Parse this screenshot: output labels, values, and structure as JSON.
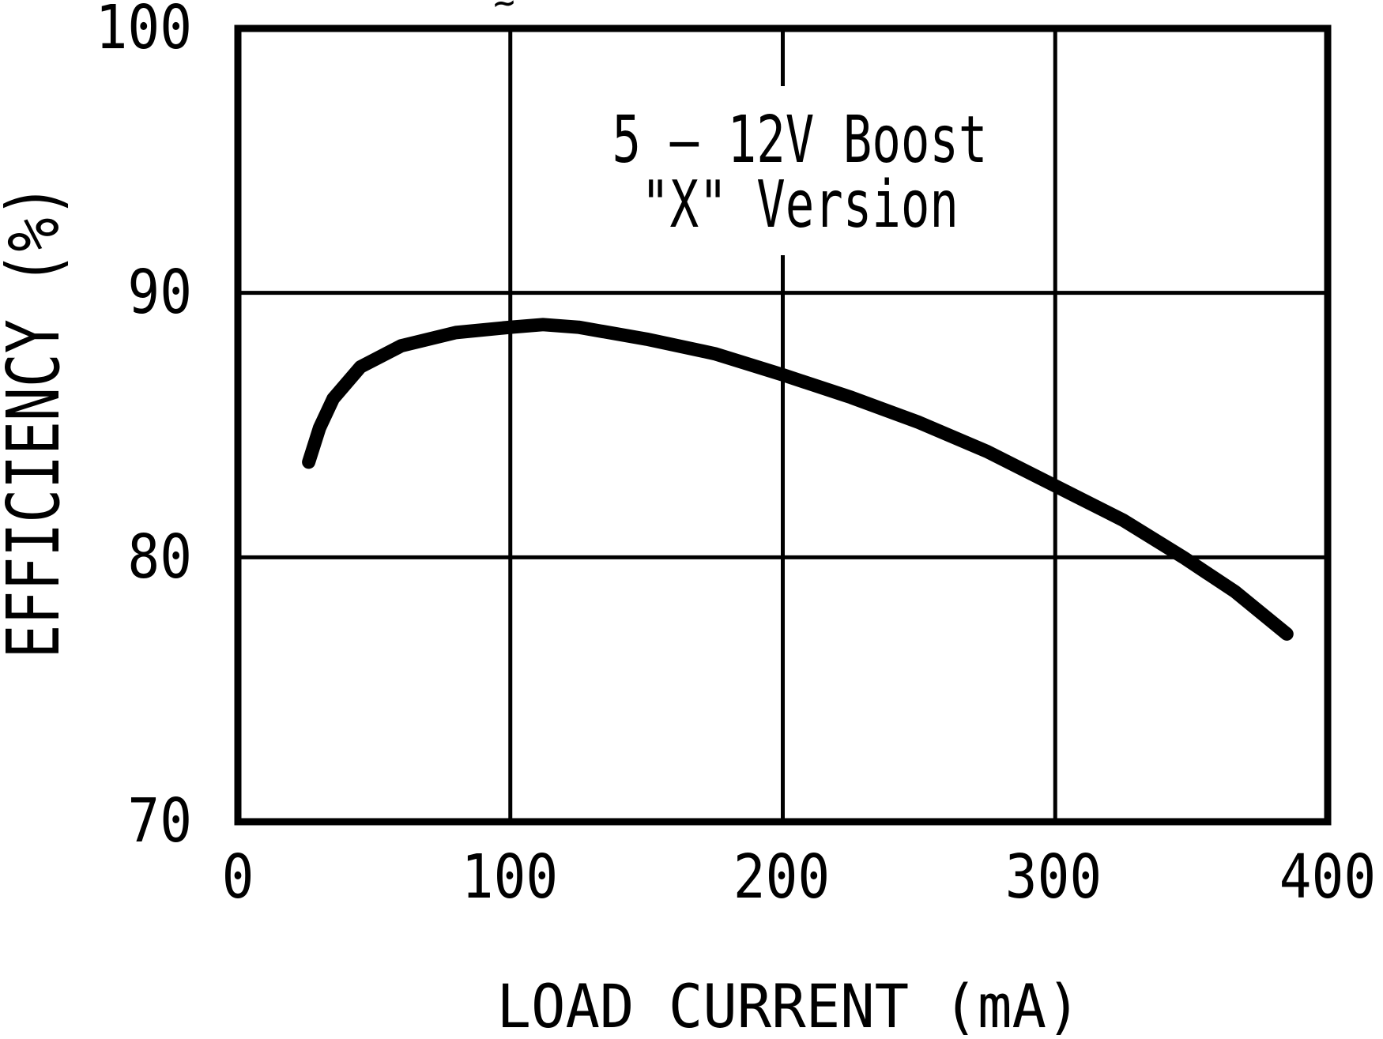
{
  "chart_data": {
    "type": "line",
    "title": "5 – 12V Boost \"X\" Version",
    "annotation_lines": [
      "5 – 12V Boost",
      "\"X\" Version"
    ],
    "xlabel": "LOAD CURRENT (mA)",
    "ylabel": "EFFICIENCY (%)",
    "xlim": [
      0,
      400
    ],
    "ylim": [
      70,
      100
    ],
    "x_ticks": [
      0,
      100,
      200,
      300,
      400
    ],
    "x_tick_labels": [
      "0",
      "100",
      "200",
      "300",
      "400"
    ],
    "y_ticks": [
      70,
      80,
      90,
      100
    ],
    "y_tick_labels": [
      "70",
      "80",
      "90",
      "100"
    ],
    "grid": "on",
    "legend": "none",
    "series": [
      {
        "name": "efficiency",
        "x": [
          26,
          30,
          35,
          45,
          60,
          80,
          100,
          112,
          125,
          150,
          175,
          200,
          225,
          250,
          275,
          300,
          325,
          347,
          366,
          385
        ],
        "y": [
          83.6,
          84.9,
          86.0,
          87.2,
          88.0,
          88.5,
          88.7,
          88.8,
          88.7,
          88.25,
          87.7,
          86.9,
          86.05,
          85.1,
          84.0,
          82.7,
          81.4,
          80.0,
          78.7,
          77.1
        ],
        "stroke_width": 17
      }
    ],
    "colors": {
      "foreground": "#000000",
      "background": "#ffffff"
    },
    "stray_mark": "~"
  }
}
